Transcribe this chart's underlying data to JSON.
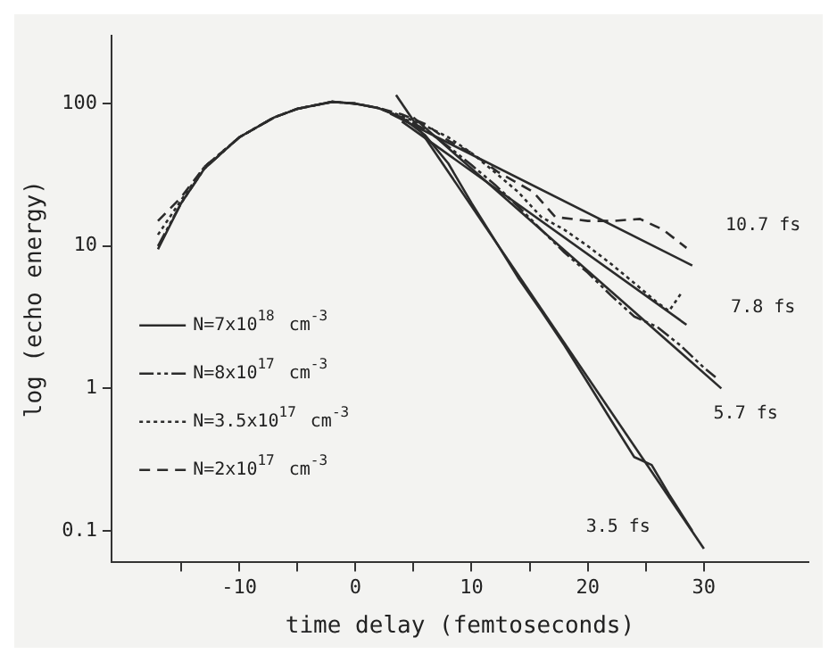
{
  "chart_data": {
    "type": "line",
    "xlabel": "time delay (femtoseconds)",
    "ylabel": "log (echo energy)",
    "log": "y",
    "xlim": [
      -21,
      39
    ],
    "ylim": [
      0.06,
      300
    ],
    "xticks": [
      {
        "value": -15,
        "label": null
      },
      -10,
      {
        "value": -5,
        "label": null
      },
      0,
      {
        "value": 5,
        "label": null
      },
      10,
      {
        "value": 15,
        "label": null
      },
      20,
      {
        "value": 25,
        "label": null
      },
      30
    ],
    "yticks": [
      0.1,
      1,
      10,
      100
    ],
    "grid": false,
    "legend": "left",
    "marker": "none",
    "series": [
      {
        "name": "N=7x10$^{18}$ cm$^{-3}$",
        "color": "#2b2b2b",
        "line_style": "solid",
        "x": [
          -17,
          -15,
          -13,
          -10,
          -7,
          -5,
          -2,
          0,
          2,
          4,
          6,
          8,
          10,
          12,
          14,
          16,
          18,
          20,
          22,
          24,
          25.5,
          27,
          29
        ],
        "values": [
          9.5,
          20,
          35,
          58,
          80,
          92,
          103,
          100,
          93,
          80,
          60,
          38,
          20,
          11,
          6,
          3.5,
          2,
          1.1,
          0.6,
          0.33,
          0.29,
          0.18,
          0.1
        ]
      },
      {
        "name": "N=8x10$^{17}$ cm$^{-3}$",
        "color": "#2b2b2b",
        "line_style": "dashdot",
        "x": [
          -17,
          -15,
          -13,
          -10,
          -7,
          -5,
          -2,
          0,
          2,
          4,
          6,
          8,
          10,
          12,
          14,
          16,
          18,
          20,
          22,
          24,
          26,
          28,
          30,
          31
        ],
        "values": [
          10,
          20,
          35,
          58,
          80,
          92,
          103,
          100,
          93,
          80,
          66,
          50,
          37,
          27,
          19,
          13,
          9,
          6.5,
          4.5,
          3.2,
          2.7,
          2,
          1.4,
          1.2
        ]
      },
      {
        "name": "N=3.5x10$^{17}$ cm$^{-3}$",
        "color": "#2b2b2b",
        "line_style": "dotted",
        "x": [
          -17,
          -15,
          -13,
          -10,
          -7,
          -5,
          -2,
          0,
          2,
          4,
          6,
          8,
          10,
          12,
          14,
          16,
          18,
          20,
          22,
          24,
          26,
          27,
          28
        ],
        "values": [
          12,
          21,
          36,
          58,
          80,
          92,
          103,
          100,
          93,
          82,
          70,
          58,
          45,
          33,
          24,
          16,
          13,
          10,
          7.5,
          5.5,
          4,
          3.5,
          4.6
        ]
      },
      {
        "name": "N=2x10$^{17}$ cm$^{-3}$",
        "color": "#2b2b2b",
        "line_style": "dashed",
        "x": [
          -17,
          -15,
          -13,
          -10,
          -7,
          -5,
          -2,
          0,
          2,
          4,
          6,
          8,
          10,
          12.3,
          15.3,
          17.2,
          20,
          22.2,
          24.5,
          26.5,
          28.5
        ],
        "values": [
          15,
          22,
          36,
          58,
          80,
          92,
          103,
          100,
          93,
          84,
          72,
          55,
          45,
          33,
          24,
          16,
          15,
          15,
          15.5,
          13,
          9.7
        ]
      },
      {
        "color": "#2b2b2b",
        "line_style": "solid",
        "x": [
          3,
          29
        ],
        "values": [
          85,
          7.3
        ]
      },
      {
        "color": "#2b2b2b",
        "line_style": "solid",
        "x": [
          4,
          28.5
        ],
        "values": [
          75,
          2.8
        ]
      },
      {
        "color": "#2b2b2b",
        "line_style": "solid",
        "x": [
          5,
          31.5
        ],
        "values": [
          80,
          1
        ]
      },
      {
        "color": "#2b2b2b",
        "line_style": "solid",
        "x": [
          3.5,
          30
        ],
        "values": [
          115,
          0.075
        ]
      }
    ],
    "annotations": [
      "10.7 fs",
      "7.8 fs",
      "5.7 fs",
      "3.5 fs"
    ]
  }
}
